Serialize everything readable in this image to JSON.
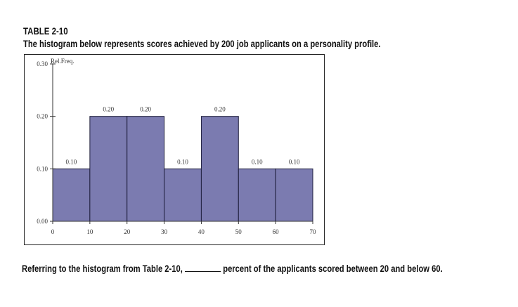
{
  "header": {
    "table_id": "TABLE 2-10",
    "caption": "The histogram below represents scores achieved by 200 job applicants on a personality profile."
  },
  "question": {
    "before_blank": "Referring to the histogram from Table 2-10, ",
    "after_blank": " percent of the applicants scored between 20 and below 60."
  },
  "chart_data": {
    "type": "bar",
    "title": "",
    "xlabel": "",
    "ylabel": "Rel.Freq.",
    "bins": [
      [
        0,
        10
      ],
      [
        10,
        20
      ],
      [
        20,
        30
      ],
      [
        30,
        40
      ],
      [
        40,
        50
      ],
      [
        50,
        60
      ],
      [
        60,
        70
      ]
    ],
    "values": [
      0.1,
      0.2,
      0.2,
      0.1,
      0.2,
      0.1,
      0.1
    ],
    "data_labels": [
      "0.10",
      "0.20",
      "0.20",
      "0.10",
      "0.20",
      "0.10",
      "0.10"
    ],
    "x_ticks": [
      0,
      10,
      20,
      30,
      40,
      50,
      60,
      70
    ],
    "y_ticks": [
      "0.00",
      "0.10",
      "0.20",
      "0.30"
    ],
    "xlim": [
      0,
      70
    ],
    "ylim": [
      0,
      0.3
    ],
    "grid": false,
    "bar_color": "#7b7bb0",
    "bar_edge_color": "#1e1e3c"
  }
}
